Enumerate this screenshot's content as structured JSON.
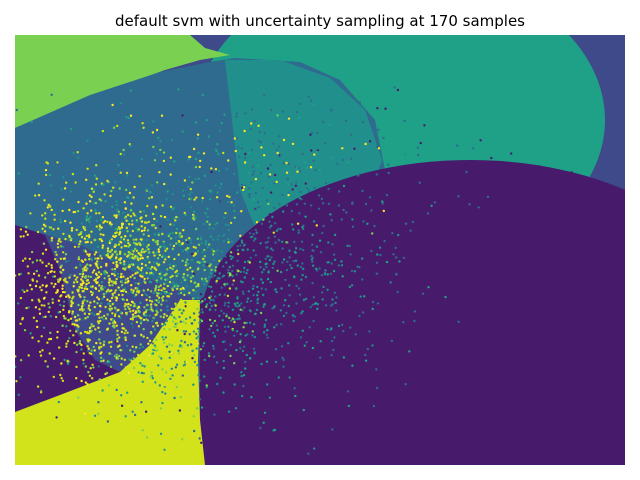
{
  "chart_data": {
    "type": "scatter",
    "title": "default svm with uncertainty sampling at 170 samples",
    "xlabel": "",
    "ylabel": "",
    "axes_visible": false,
    "grid": false,
    "colormap": "viridis",
    "description_of_background": "decision regions of classifier",
    "classes": [
      {
        "id": 0,
        "color": "#481a6c"
      },
      {
        "id": 1,
        "color": "#3e4a89"
      },
      {
        "id": 2,
        "color": "#2f6b8e"
      },
      {
        "id": 3,
        "color": "#21908d"
      },
      {
        "id": 4,
        "color": "#1fa187"
      },
      {
        "id": 5,
        "color": "#7ad151"
      },
      {
        "id": 6,
        "color": "#d2e21b"
      },
      {
        "id": 7,
        "color": "#fde725"
      }
    ],
    "clusters": [
      {
        "class": 0,
        "cx": 0.66,
        "cy": 0.67,
        "sx": 0.17,
        "sy": 0.19,
        "n": 900
      },
      {
        "class": 2,
        "cx": 0.36,
        "cy": 0.45,
        "sx": 0.14,
        "sy": 0.18,
        "n": 700
      },
      {
        "class": 3,
        "cx": 0.3,
        "cy": 0.58,
        "sx": 0.12,
        "sy": 0.14,
        "n": 500
      },
      {
        "class": 6,
        "cx": 0.16,
        "cy": 0.58,
        "sx": 0.08,
        "sy": 0.12,
        "n": 700
      },
      {
        "class": 7,
        "cx": 0.14,
        "cy": 0.55,
        "sx": 0.06,
        "sy": 0.1,
        "n": 280
      },
      {
        "class": 7,
        "cx": 0.37,
        "cy": 0.3,
        "sx": 0.1,
        "sy": 0.08,
        "n": 60
      },
      {
        "class": 5,
        "cx": 0.2,
        "cy": 0.58,
        "sx": 0.09,
        "sy": 0.13,
        "n": 350
      },
      {
        "class": 4,
        "cx": 0.32,
        "cy": 0.52,
        "sx": 0.15,
        "sy": 0.18,
        "n": 260
      }
    ]
  }
}
